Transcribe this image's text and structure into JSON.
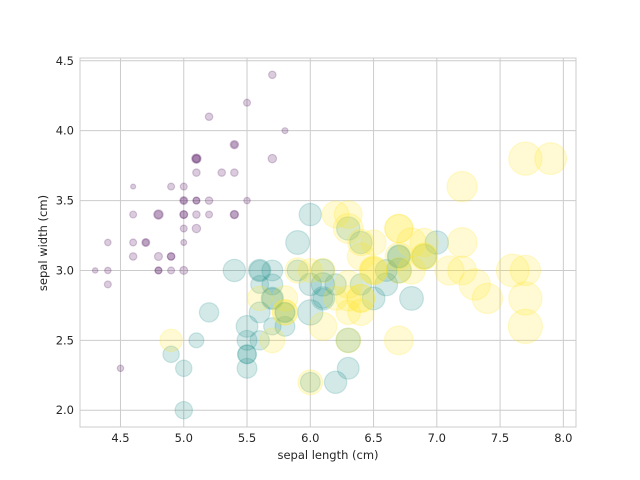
{
  "chart_data": {
    "type": "scatter",
    "title": "",
    "xlabel": "sepal length (cm)",
    "ylabel": "sepal width (cm)",
    "xlim": [
      4.18,
      8.1
    ],
    "ylim": [
      1.88,
      4.52
    ],
    "xticks": [
      4.5,
      5.0,
      5.5,
      6.0,
      6.5,
      7.0,
      7.5,
      8.0
    ],
    "xtick_labels": [
      "4.5",
      "5.0",
      "5.5",
      "6.0",
      "6.5",
      "7.0",
      "7.5",
      "8.0"
    ],
    "yticks": [
      2.0,
      2.5,
      3.0,
      3.5,
      4.0,
      4.5
    ],
    "ytick_labels": [
      "2.0",
      "2.5",
      "3.0",
      "3.5",
      "4.0",
      "4.5"
    ],
    "grid": true,
    "alpha": 0.2,
    "encoding": "marker size proportional to petal length; color by species",
    "series": [
      {
        "color": "#440154",
        "points": [
          [
            5.1,
            3.5,
            1.4
          ],
          [
            4.9,
            3.0,
            1.4
          ],
          [
            4.7,
            3.2,
            1.3
          ],
          [
            4.6,
            3.1,
            1.5
          ],
          [
            5.0,
            3.6,
            1.4
          ],
          [
            5.4,
            3.9,
            1.7
          ],
          [
            4.6,
            3.4,
            1.4
          ],
          [
            5.0,
            3.4,
            1.5
          ],
          [
            4.4,
            2.9,
            1.4
          ],
          [
            4.9,
            3.1,
            1.5
          ],
          [
            5.4,
            3.7,
            1.5
          ],
          [
            4.8,
            3.4,
            1.6
          ],
          [
            4.8,
            3.0,
            1.4
          ],
          [
            4.3,
            3.0,
            1.1
          ],
          [
            5.8,
            4.0,
            1.2
          ],
          [
            5.7,
            4.4,
            1.5
          ],
          [
            5.4,
            3.9,
            1.3
          ],
          [
            5.1,
            3.5,
            1.4
          ],
          [
            5.7,
            3.8,
            1.7
          ],
          [
            5.1,
            3.8,
            1.5
          ],
          [
            5.4,
            3.4,
            1.7
          ],
          [
            5.1,
            3.7,
            1.5
          ],
          [
            4.6,
            3.6,
            1.0
          ],
          [
            5.1,
            3.3,
            1.7
          ],
          [
            4.8,
            3.4,
            1.9
          ],
          [
            5.0,
            3.0,
            1.6
          ],
          [
            5.0,
            3.4,
            1.6
          ],
          [
            5.2,
            3.5,
            1.5
          ],
          [
            5.2,
            3.4,
            1.4
          ],
          [
            4.7,
            3.2,
            1.6
          ],
          [
            4.8,
            3.1,
            1.6
          ],
          [
            5.4,
            3.4,
            1.5
          ],
          [
            5.2,
            4.1,
            1.5
          ],
          [
            5.5,
            4.2,
            1.4
          ],
          [
            4.9,
            3.1,
            1.5
          ],
          [
            5.0,
            3.2,
            1.2
          ],
          [
            5.5,
            3.5,
            1.3
          ],
          [
            4.9,
            3.6,
            1.4
          ],
          [
            4.4,
            3.0,
            1.3
          ],
          [
            5.1,
            3.4,
            1.5
          ],
          [
            5.0,
            3.5,
            1.3
          ],
          [
            4.5,
            2.3,
            1.3
          ],
          [
            4.4,
            3.2,
            1.3
          ],
          [
            5.0,
            3.5,
            1.6
          ],
          [
            5.1,
            3.8,
            1.9
          ],
          [
            4.8,
            3.0,
            1.4
          ],
          [
            5.1,
            3.8,
            1.6
          ],
          [
            4.6,
            3.2,
            1.4
          ],
          [
            5.3,
            3.7,
            1.5
          ],
          [
            5.0,
            3.3,
            1.4
          ]
        ]
      },
      {
        "color": "#21918c",
        "points": [
          [
            7.0,
            3.2,
            4.7
          ],
          [
            6.4,
            3.2,
            4.5
          ],
          [
            6.9,
            3.1,
            4.9
          ],
          [
            5.5,
            2.3,
            4.0
          ],
          [
            6.5,
            2.8,
            4.6
          ],
          [
            5.7,
            2.8,
            4.5
          ],
          [
            6.3,
            3.3,
            4.7
          ],
          [
            4.9,
            2.4,
            3.3
          ],
          [
            6.6,
            2.9,
            4.6
          ],
          [
            5.2,
            2.7,
            3.9
          ],
          [
            5.0,
            2.0,
            3.5
          ],
          [
            5.9,
            3.0,
            4.2
          ],
          [
            6.0,
            2.2,
            4.0
          ],
          [
            6.1,
            2.9,
            4.7
          ],
          [
            5.6,
            2.9,
            3.6
          ],
          [
            6.7,
            3.1,
            4.4
          ],
          [
            5.6,
            3.0,
            4.5
          ],
          [
            5.8,
            2.7,
            4.1
          ],
          [
            6.2,
            2.2,
            4.5
          ],
          [
            5.6,
            2.5,
            3.9
          ],
          [
            5.9,
            3.2,
            4.8
          ],
          [
            6.1,
            2.8,
            4.0
          ],
          [
            6.3,
            2.5,
            4.9
          ],
          [
            6.1,
            2.8,
            4.7
          ],
          [
            6.4,
            2.9,
            4.3
          ],
          [
            6.6,
            3.0,
            4.4
          ],
          [
            6.8,
            2.8,
            4.8
          ],
          [
            6.7,
            3.0,
            5.0
          ],
          [
            6.0,
            2.9,
            4.5
          ],
          [
            5.7,
            2.6,
            3.5
          ],
          [
            5.5,
            2.4,
            3.8
          ],
          [
            5.5,
            2.4,
            3.7
          ],
          [
            5.8,
            2.7,
            3.9
          ],
          [
            6.0,
            2.7,
            5.1
          ],
          [
            5.4,
            3.0,
            4.5
          ],
          [
            6.0,
            3.4,
            4.5
          ],
          [
            6.7,
            3.1,
            4.7
          ],
          [
            6.3,
            2.3,
            4.4
          ],
          [
            5.6,
            3.0,
            4.1
          ],
          [
            5.5,
            2.5,
            4.0
          ],
          [
            5.5,
            2.6,
            4.4
          ],
          [
            6.1,
            3.0,
            4.6
          ],
          [
            5.8,
            2.6,
            4.0
          ],
          [
            5.0,
            2.3,
            3.3
          ],
          [
            5.6,
            2.7,
            4.2
          ],
          [
            5.7,
            3.0,
            4.2
          ],
          [
            5.7,
            2.9,
            4.2
          ],
          [
            6.2,
            2.9,
            4.3
          ],
          [
            5.1,
            2.5,
            3.0
          ],
          [
            5.7,
            2.8,
            4.1
          ]
        ]
      },
      {
        "color": "#fde725",
        "points": [
          [
            6.3,
            3.3,
            6.0
          ],
          [
            5.8,
            2.7,
            5.1
          ],
          [
            7.1,
            3.0,
            5.9
          ],
          [
            6.3,
            2.9,
            5.6
          ],
          [
            6.5,
            3.0,
            5.8
          ],
          [
            7.6,
            3.0,
            6.6
          ],
          [
            4.9,
            2.5,
            4.5
          ],
          [
            7.3,
            2.9,
            6.3
          ],
          [
            6.7,
            2.5,
            5.8
          ],
          [
            7.2,
            3.6,
            6.1
          ],
          [
            6.5,
            3.2,
            5.1
          ],
          [
            6.4,
            2.7,
            5.3
          ],
          [
            6.8,
            3.0,
            5.5
          ],
          [
            5.7,
            2.5,
            5.0
          ],
          [
            5.8,
            2.8,
            5.1
          ],
          [
            6.4,
            3.2,
            5.3
          ],
          [
            6.5,
            3.0,
            5.5
          ],
          [
            7.7,
            3.8,
            6.7
          ],
          [
            7.7,
            2.6,
            6.9
          ],
          [
            6.0,
            2.2,
            5.0
          ],
          [
            6.9,
            3.2,
            5.7
          ],
          [
            5.6,
            2.8,
            4.9
          ],
          [
            7.7,
            2.8,
            6.7
          ],
          [
            6.3,
            2.7,
            4.9
          ],
          [
            6.7,
            3.3,
            5.7
          ],
          [
            7.2,
            3.2,
            6.0
          ],
          [
            6.2,
            2.8,
            4.8
          ],
          [
            6.1,
            3.0,
            4.9
          ],
          [
            6.4,
            2.8,
            5.6
          ],
          [
            7.2,
            3.0,
            5.8
          ],
          [
            7.4,
            2.8,
            6.1
          ],
          [
            7.9,
            3.8,
            6.4
          ],
          [
            6.4,
            2.8,
            5.6
          ],
          [
            6.3,
            2.8,
            5.1
          ],
          [
            6.1,
            2.6,
            5.6
          ],
          [
            7.7,
            3.0,
            6.1
          ],
          [
            6.3,
            3.4,
            5.6
          ],
          [
            6.4,
            3.1,
            5.5
          ],
          [
            6.0,
            3.0,
            4.8
          ],
          [
            6.9,
            3.1,
            5.4
          ],
          [
            6.7,
            3.1,
            5.6
          ],
          [
            6.9,
            3.1,
            5.1
          ],
          [
            5.8,
            2.7,
            5.1
          ],
          [
            6.8,
            3.2,
            5.9
          ],
          [
            6.7,
            3.3,
            5.7
          ],
          [
            6.7,
            3.0,
            5.2
          ],
          [
            6.3,
            2.5,
            5.0
          ],
          [
            6.5,
            3.0,
            5.2
          ],
          [
            6.2,
            3.4,
            5.4
          ],
          [
            5.9,
            3.0,
            5.1
          ]
        ]
      }
    ]
  }
}
